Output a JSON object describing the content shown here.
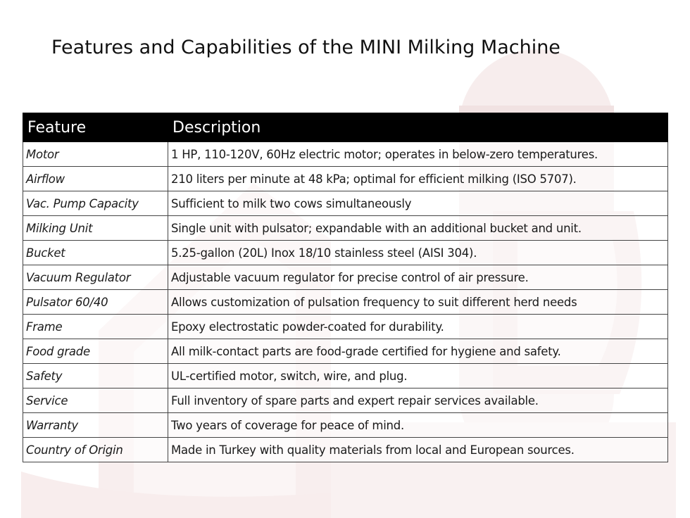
{
  "title": "Features and Capabilities of the MINI Milking Machine",
  "table": {
    "headers": [
      "Feature",
      "Description"
    ],
    "rows": [
      {
        "feature": "Motor",
        "description": "1 HP, 110-120V, 60Hz electric motor; operates in below-zero temperatures."
      },
      {
        "feature": "Airflow",
        "description": "210 liters per minute at 48 kPa; optimal for efficient milking (ISO 5707)."
      },
      {
        "feature": "Vac. Pump Capacity",
        "description": "Sufficient to milk two cows simultaneously"
      },
      {
        "feature": "Milking Unit",
        "description": "Single unit with pulsator; expandable with an additional bucket and unit."
      },
      {
        "feature": "Bucket",
        "description": "5.25-gallon (20L) Inox 18/10 stainless steel (AISI 304)."
      },
      {
        "feature": "Vacuum Regulator",
        "description": "Adjustable vacuum regulator for precise control of air pressure."
      },
      {
        "feature": "Pulsator 60/40",
        "description": "Allows customization of pulsation frequency to suit different herd needs"
      },
      {
        "feature": "Frame",
        "description": "Epoxy electrostatic powder-coated for durability."
      },
      {
        "feature": "Food grade",
        "description": "All milk-contact parts are food-grade certified for hygiene and safety."
      },
      {
        "feature": "Safety",
        "description": "UL-certified motor, switch, wire, and plug."
      },
      {
        "feature": "Service",
        "description": "Full inventory of spare parts and expert repair services available."
      },
      {
        "feature": "Warranty",
        "description": "Two years of coverage for peace of mind."
      },
      {
        "feature": "Country of Origin",
        "description": "Made in Turkey with quality materials from local and European sources."
      }
    ]
  },
  "colors": {
    "header_bg": "#000000",
    "header_text": "#ffffff",
    "watermark": "#f7eded"
  }
}
